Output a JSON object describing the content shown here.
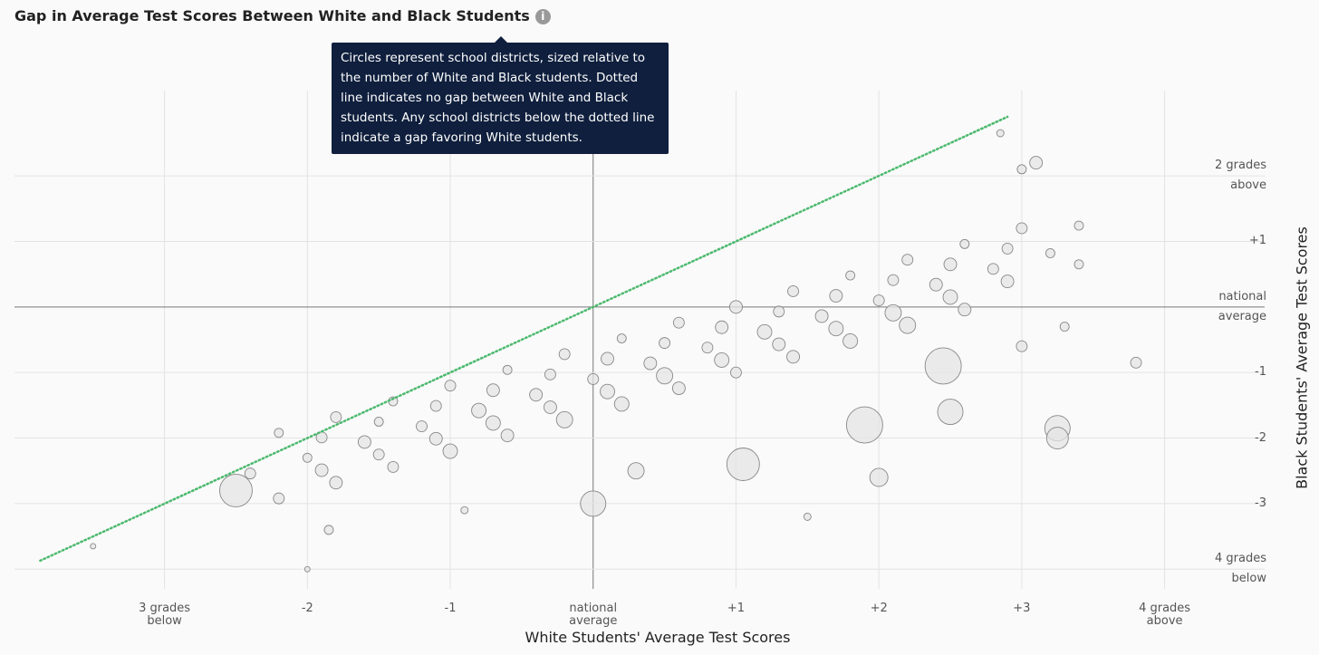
{
  "chart_data": {
    "type": "scatter",
    "title": "Gap in Average Test Scores Between White and Black Students",
    "info_icon": "i",
    "tooltip": "Circles represent school districts, sized relative to the number of White and Black students. Dotted line indicates no gap between White and Black students. Any school districts below the dotted line indicate a gap favoring White students.",
    "x_label": "White Students' Average Test Scores",
    "y_label": "Black Students' Average Test Scores",
    "xlim": [
      -4.05,
      4.7
    ],
    "ylim": [
      -4.3,
      3.3
    ],
    "xticks": [
      {
        "value": -3,
        "label": "3 grades below"
      },
      -2,
      -1,
      {
        "value": 0,
        "label": "national average"
      },
      {
        "value": 1,
        "label": "+1"
      },
      {
        "value": 2,
        "label": "+2"
      },
      {
        "value": 3,
        "label": "+3"
      },
      {
        "value": 4,
        "label": "4 grades above"
      }
    ],
    "yticks": [
      {
        "value": 2,
        "label": "2 grades above"
      },
      {
        "value": 1,
        "label": "+1"
      },
      {
        "value": 0,
        "label": "national average"
      },
      -1,
      -2,
      -3,
      {
        "value": -4,
        "label": "4 grades below"
      }
    ],
    "grid": true,
    "color": "#e4e4e4",
    "line_color": "#4cb96e",
    "reference_line": {
      "x": [
        -3.87,
        2.9
      ],
      "y": [
        -3.87,
        2.9
      ]
    },
    "x": [
      -2.4,
      -2.0,
      -1.6,
      -1.2,
      -0.8,
      -0.4,
      0,
      0.4,
      0.8,
      1.2,
      1.6,
      2.0,
      2.4,
      2.8,
      3.2,
      -2.2,
      -1.8,
      -1.4,
      -1.0,
      -0.6,
      -0.2,
      0.2,
      0.6,
      1.0,
      1.4,
      1.8,
      2.2,
      2.6,
      3.0,
      3.4,
      -2.2,
      -1.8,
      -1.4,
      -1.0,
      -0.6,
      -0.2,
      0.2,
      0.6,
      1.0,
      1.4,
      1.8,
      2.2,
      2.6,
      3.0,
      3.3,
      -1.9,
      -1.5,
      -1.1,
      -0.7,
      -0.3,
      0.1,
      0.5,
      0.9,
      1.3,
      1.7,
      2.1,
      2.5,
      2.9,
      -1.9,
      -1.5,
      -1.1,
      -0.7,
      -0.3,
      0.1,
      0.5,
      0.9,
      1.3,
      1.7,
      2.1,
      2.5,
      2.9,
      -2.5,
      0.0,
      1.05,
      1.9,
      2.5,
      3.25,
      3.25,
      2.45,
      3.0,
      2.85,
      3.1,
      -3.5,
      -2.0,
      3.8,
      3.4,
      -1.85,
      2.0,
      0.3,
      -0.9,
      1.5
    ],
    "y": [
      -2.54,
      -2.3,
      -2.06,
      -1.82,
      -1.58,
      -1.34,
      -1.1,
      -0.86,
      -0.62,
      -0.38,
      -0.14,
      0.1,
      0.34,
      0.58,
      0.82,
      -1.92,
      -1.68,
      -1.44,
      -1.2,
      -0.96,
      -0.72,
      -0.48,
      -0.24,
      0,
      0.24,
      0.48,
      0.72,
      0.96,
      1.2,
      1.24,
      -2.92,
      -2.68,
      -2.44,
      -2.2,
      -1.96,
      -1.72,
      -1.48,
      -1.24,
      -1,
      -0.76,
      -0.52,
      -0.28,
      -0.04,
      -0.6,
      -0.3,
      -1.99,
      -1.75,
      -1.51,
      -1.27,
      -1.03,
      -0.79,
      -0.55,
      -0.31,
      -0.07,
      0.17,
      0.41,
      0.65,
      0.89,
      -2.49,
      -2.25,
      -2.01,
      -1.77,
      -1.53,
      -1.29,
      -1.05,
      -0.81,
      -0.57,
      -0.33,
      -0.09,
      0.15,
      0.39,
      -2.8,
      -3.0,
      -2.4,
      -1.8,
      -1.6,
      -1.85,
      -2.0,
      -0.9,
      2.1,
      2.65,
      2.2,
      -3.65,
      -4.0,
      -0.85,
      0.65,
      -3.4,
      -2.6,
      -2.5,
      -3.1,
      -3.2
    ],
    "sizes": [
      6,
      5,
      7,
      6,
      8,
      7,
      6,
      7,
      6,
      8,
      7,
      6,
      7,
      6,
      5,
      5,
      6,
      5,
      6,
      5,
      6,
      5,
      6,
      7,
      6,
      5,
      6,
      5,
      6,
      5,
      6,
      7,
      6,
      8,
      7,
      9,
      8,
      7,
      6,
      7,
      8,
      9,
      7,
      6,
      5,
      6,
      5,
      6,
      7,
      6,
      7,
      6,
      7,
      6,
      7,
      6,
      7,
      6,
      7,
      6,
      7,
      8,
      7,
      8,
      9,
      8,
      7,
      8,
      9,
      8,
      7,
      18,
      14,
      18,
      20,
      14,
      14,
      12,
      20,
      5,
      4,
      7,
      3,
      3,
      6,
      5,
      5,
      10,
      9,
      4,
      4
    ]
  }
}
